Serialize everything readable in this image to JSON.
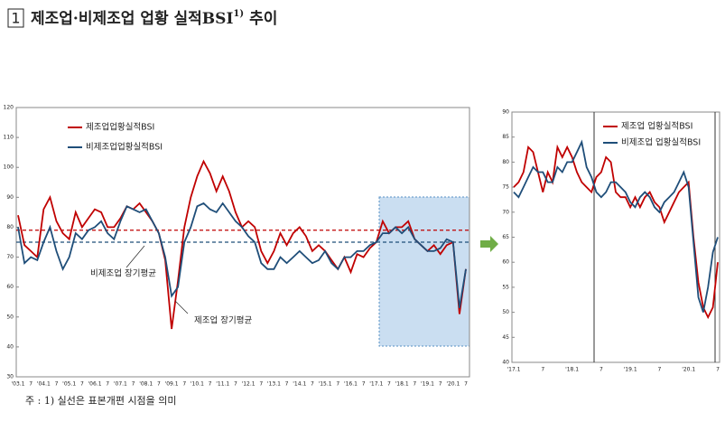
{
  "number": "1",
  "title": "제조업·비제조업 업황 실적BSI",
  "title_note": "1)",
  "title_end": "추이",
  "footnote": "주 : 1) 실선은 표본개편 시점을 의미",
  "chart_data": [
    {
      "type": "line",
      "legend": "upper left",
      "categories": [
        "'03.1",
        null,
        "7",
        null,
        "'04.1",
        null,
        "7",
        null,
        "'05.1",
        null,
        "7",
        null,
        "'06.1",
        null,
        "7",
        null,
        "'07.1",
        null,
        "7",
        null,
        "'08.1",
        null,
        "7",
        null,
        "'09.1",
        null,
        "7",
        null,
        "'10.1",
        null,
        "7",
        null,
        "'11.1",
        null,
        "7",
        null,
        "'12.1",
        null,
        "7",
        null,
        "'13.1",
        null,
        "7",
        null,
        "'14.1",
        null,
        "7",
        null,
        "'15.1",
        null,
        "7",
        null,
        "'16.1",
        null,
        "7",
        null,
        "'17.1",
        null,
        "7",
        null,
        "'18.1",
        null,
        "7",
        null,
        "'19.1",
        null,
        "7",
        null,
        "'20.1",
        null,
        "7"
      ],
      "series": [
        {
          "name": "제조업업황실적BSI",
          "color": "#c00000",
          "values": [
            84,
            74,
            72,
            70,
            86,
            90,
            82,
            78,
            76,
            85,
            80,
            83,
            86,
            85,
            80,
            80,
            83,
            87,
            86,
            88,
            85,
            82,
            78,
            69,
            46,
            62,
            80,
            90,
            97,
            102,
            98,
            92,
            97,
            92,
            85,
            80,
            82,
            80,
            72,
            68,
            72,
            78,
            74,
            78,
            80,
            77,
            72,
            74,
            72,
            69,
            66,
            70,
            65,
            71,
            70,
            73,
            75,
            82,
            78,
            80,
            80,
            82,
            76,
            74,
            72,
            74,
            71,
            74,
            75,
            51,
            66
          ]
        },
        {
          "name": "비제조업업황실적BSI",
          "color": "#1f4e79",
          "values": [
            80,
            68,
            70,
            69,
            75,
            80,
            72,
            66,
            70,
            78,
            76,
            79,
            80,
            82,
            78,
            76,
            82,
            87,
            86,
            85,
            86,
            82,
            78,
            70,
            57,
            60,
            75,
            80,
            87,
            88,
            86,
            85,
            88,
            85,
            82,
            80,
            77,
            75,
            68,
            66,
            66,
            70,
            68,
            70,
            72,
            70,
            68,
            69,
            72,
            68,
            66,
            70,
            70,
            72,
            72,
            74,
            75,
            78,
            78,
            80,
            78,
            80,
            76,
            74,
            72,
            72,
            73,
            76,
            75,
            53,
            66
          ]
        }
      ],
      "reference_lines": [
        {
          "name": "제조업 장기평균",
          "value": 79,
          "color": "#c00000"
        },
        {
          "name": "비제조업 장기평균",
          "value": 75,
          "color": "#1f4e79"
        }
      ],
      "ylim": [
        30,
        120
      ],
      "yticks": [
        30,
        40,
        50,
        60,
        70,
        80,
        90,
        100,
        110,
        120
      ]
    },
    {
      "type": "line",
      "legend": "upper right",
      "categories": [
        "'17.1",
        null,
        null,
        null,
        null,
        null,
        "7",
        null,
        null,
        null,
        null,
        null,
        "'18.1",
        null,
        null,
        null,
        null,
        null,
        "7",
        null,
        null,
        null,
        null,
        null,
        "'19.1",
        null,
        null,
        null,
        null,
        null,
        "7",
        null,
        null,
        null,
        null,
        null,
        "'20.1",
        null,
        null,
        null,
        null,
        null,
        "7"
      ],
      "series": [
        {
          "name": "제조업 업황실적BSI",
          "color": "#c00000",
          "values": [
            75,
            76,
            78,
            83,
            82,
            78,
            74,
            78,
            76,
            83,
            81,
            83,
            81,
            78,
            76,
            75,
            74,
            77,
            78,
            81,
            80,
            74,
            73,
            73,
            71,
            73,
            71,
            73,
            74,
            72,
            71,
            68,
            70,
            72,
            74,
            75,
            76,
            65,
            56,
            51,
            49,
            51,
            60
          ]
        },
        {
          "name": "비제조업 업황실적BSI",
          "color": "#1f4e79",
          "values": [
            74,
            73,
            75,
            77,
            79,
            78,
            78,
            76,
            76,
            79,
            78,
            80,
            80,
            82,
            84,
            79,
            77,
            74,
            73,
            74,
            76,
            76,
            75,
            74,
            72,
            71,
            73,
            74,
            73,
            71,
            70,
            72,
            73,
            74,
            76,
            78,
            75,
            64,
            53,
            50,
            55,
            62,
            65
          ]
        }
      ],
      "ylim": [
        40,
        90
      ],
      "yticks": [
        40,
        45,
        50,
        55,
        60,
        65,
        70,
        75,
        80,
        85,
        90
      ]
    }
  ]
}
